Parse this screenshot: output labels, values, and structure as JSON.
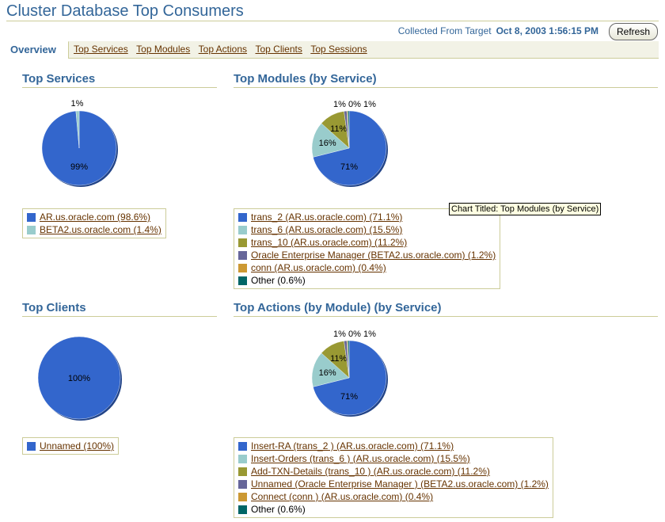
{
  "header": {
    "title": "Cluster Database Top Consumers",
    "collected_label": "Collected From Target",
    "collected_value": "Oct 8, 2003 1:56:15 PM",
    "refresh_label": "Refresh"
  },
  "tabs": [
    {
      "label": "Overview",
      "active": true
    },
    {
      "label": "Top Services"
    },
    {
      "label": "Top Modules"
    },
    {
      "label": "Top Actions"
    },
    {
      "label": "Top Clients"
    },
    {
      "label": "Top Sessions"
    }
  ],
  "tooltip": "Chart Titled: Top Modules (by Service)",
  "chart_data": [
    {
      "type": "pie",
      "title": "Top Services",
      "slices": [
        {
          "label": "AR.us.oracle.com (98.6%)",
          "value": 98.6,
          "pct_label": "99%",
          "color": "#3366cc",
          "link": true
        },
        {
          "label": "BETA2.us.oracle.com (1.4%)",
          "value": 1.4,
          "pct_label": "1%",
          "color": "#99cccc",
          "link": true
        }
      ]
    },
    {
      "type": "pie",
      "title": "Top Modules (by Service)",
      "slices": [
        {
          "label": "trans_2 (AR.us.oracle.com) (71.1%)",
          "value": 71.1,
          "pct_label": "71%",
          "color": "#3366cc",
          "link": true
        },
        {
          "label": "trans_6 (AR.us.oracle.com) (15.5%)",
          "value": 15.5,
          "pct_label": "16%",
          "color": "#99cccc",
          "link": true
        },
        {
          "label": "trans_10 (AR.us.oracle.com) (11.2%)",
          "value": 11.2,
          "pct_label": "11%",
          "color": "#999933",
          "link": true
        },
        {
          "label": "Oracle Enterprise Manager (BETA2.us.oracle.com) (1.2%)",
          "value": 1.2,
          "pct_label": "1%",
          "color": "#666699",
          "link": true
        },
        {
          "label": "conn (AR.us.oracle.com) (0.4%)",
          "value": 0.4,
          "pct_label": "0%",
          "color": "#cc9933",
          "link": true
        },
        {
          "label": "Other (0.6%)",
          "value": 0.6,
          "pct_label": "1%",
          "color": "#006666",
          "link": false
        }
      ]
    },
    {
      "type": "pie",
      "title": "Top Clients",
      "slices": [
        {
          "label": "Unnamed (100%)",
          "value": 100,
          "pct_label": "100%",
          "color": "#3366cc",
          "link": true
        }
      ]
    },
    {
      "type": "pie",
      "title": "Top Actions (by Module) (by Service)",
      "slices": [
        {
          "label": "Insert-RA (trans_2 ) (AR.us.oracle.com) (71.1%)",
          "value": 71.1,
          "pct_label": "71%",
          "color": "#3366cc",
          "link": true
        },
        {
          "label": "Insert-Orders (trans_6 ) (AR.us.oracle.com) (15.5%)",
          "value": 15.5,
          "pct_label": "16%",
          "color": "#99cccc",
          "link": true
        },
        {
          "label": "Add-TXN-Details (trans_10 ) (AR.us.oracle.com) (11.2%)",
          "value": 11.2,
          "pct_label": "11%",
          "color": "#999933",
          "link": true
        },
        {
          "label": "Unnamed (Oracle Enterprise Manager ) (BETA2.us.oracle.com) (1.2%)",
          "value": 1.2,
          "pct_label": "1%",
          "color": "#666699",
          "link": true
        },
        {
          "label": "Connect (conn ) (AR.us.oracle.com) (0.4%)",
          "value": 0.4,
          "pct_label": "0%",
          "color": "#cc9933",
          "link": true
        },
        {
          "label": "Other (0.6%)",
          "value": 0.6,
          "pct_label": "1%",
          "color": "#006666",
          "link": false
        }
      ]
    }
  ]
}
